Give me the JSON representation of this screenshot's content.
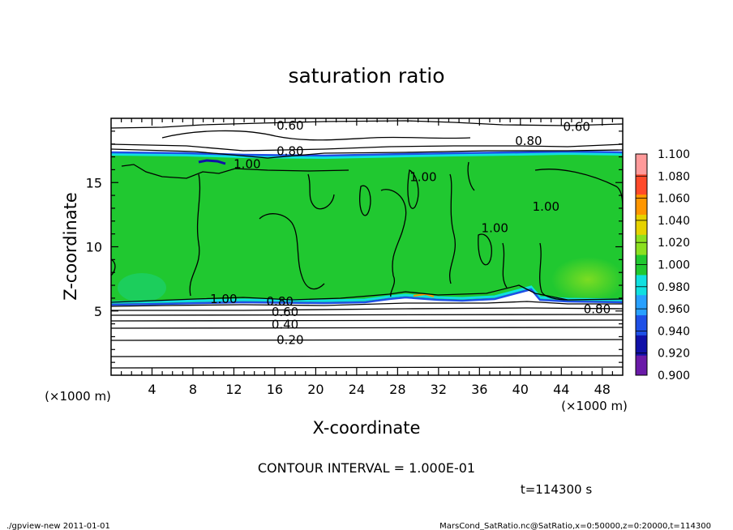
{
  "chart_data": {
    "type": "heatmap",
    "title": "saturation ratio",
    "xlabel": "X-coordinate",
    "ylabel": "Z-coordinate",
    "x_unit": "(×1000 m)",
    "y_unit": "(×1000 m)",
    "xlim": [
      0,
      50
    ],
    "ylim": [
      0,
      20
    ],
    "x_ticks": [
      4,
      8,
      12,
      16,
      20,
      24,
      28,
      32,
      36,
      40,
      44,
      48
    ],
    "y_ticks": [
      5,
      10,
      15
    ],
    "colorbar": {
      "levels": [
        0.9,
        0.92,
        0.94,
        0.96,
        0.98,
        1.0,
        1.02,
        1.04,
        1.06,
        1.08,
        1.1
      ],
      "labels": [
        "0.900",
        "0.920",
        "0.940",
        "0.960",
        "0.980",
        "1.000",
        "1.020",
        "1.040",
        "1.060",
        "1.080",
        "1.100"
      ],
      "colors": [
        "#6a1aa8",
        "#1010a8",
        "#1e50e6",
        "#28a0ff",
        "#10e0e0",
        "#20c830",
        "#8ce020",
        "#e6d200",
        "#ff9600",
        "#ff4a2a",
        "#ff9a9a"
      ]
    },
    "contour_labels": [
      {
        "text": "0.60",
        "x": 17.5,
        "z": 19.5
      },
      {
        "text": "0.60",
        "x": 45.5,
        "z": 19.4
      },
      {
        "text": "0.80",
        "x": 40.8,
        "z": 18.3
      },
      {
        "text": "0.80",
        "x": 17.5,
        "z": 17.5
      },
      {
        "text": "1.00",
        "x": 13.3,
        "z": 16.5
      },
      {
        "text": "1.00",
        "x": 30.5,
        "z": 15.5
      },
      {
        "text": "1.00",
        "x": 37.5,
        "z": 11.5
      },
      {
        "text": "1.00",
        "x": 42.5,
        "z": 13.2
      },
      {
        "text": "1.00",
        "x": 11.0,
        "z": 6.0
      },
      {
        "text": "0.80",
        "x": 16.5,
        "z": 5.8
      },
      {
        "text": "0.80",
        "x": 47.5,
        "z": 5.2
      },
      {
        "text": "0.60",
        "x": 17.0,
        "z": 5.0
      },
      {
        "text": "0.40",
        "x": 17.0,
        "z": 4.0
      },
      {
        "text": "0.20",
        "x": 17.5,
        "z": 2.8
      }
    ],
    "contour_interval_text": "CONTOUR INTERVAL = 1.000E-01",
    "time_text": "t=114300 s"
  },
  "footer": {
    "left": "./gpview-new  2011-01-01",
    "right": "MarsCond_SatRatio.nc@SatRatio,x=0:50000,z=0:20000,t=114300"
  }
}
